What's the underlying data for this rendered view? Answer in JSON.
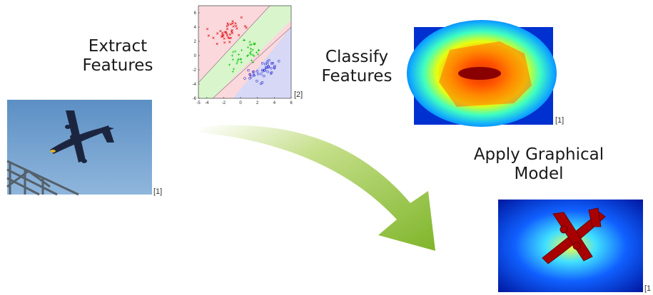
{
  "steps": [
    {
      "lines": [
        "Extract",
        "Features"
      ]
    },
    {
      "lines": [
        "Classify",
        "Features"
      ]
    },
    {
      "lines": [
        "Apply Graphical",
        "Model"
      ]
    }
  ],
  "images": [
    {
      "citation": "[1]"
    },
    {
      "citation": "[2]"
    },
    {
      "citation": "[1]"
    },
    {
      "citation": "[1"
    }
  ],
  "scatter_plot": {
    "xlim": [
      -5,
      6
    ],
    "ylim": [
      -6,
      7
    ],
    "xticks": [
      -5,
      -4,
      -2,
      0,
      2,
      4,
      6
    ],
    "yticks": [
      6,
      4,
      2,
      0,
      -2,
      -4,
      -6
    ]
  }
}
